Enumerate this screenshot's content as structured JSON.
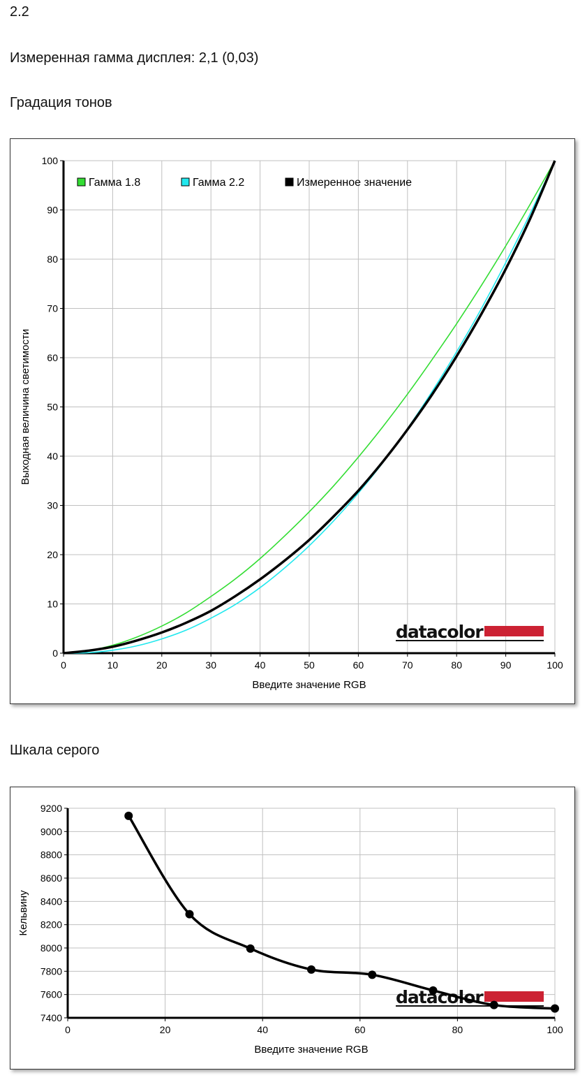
{
  "header": {
    "gamma_value": "2.2",
    "measured_gamma": "Измеренная гамма дисплея: 2,1 (0,03)",
    "tone_title": "Градация тонов",
    "gray_title": "Шкала серого"
  },
  "colors": {
    "gamma18": "#33dd33",
    "gamma22": "#22e8ee",
    "measured": "#000000",
    "grid": "#c0c0c0",
    "brand_bar": "#cc2233"
  },
  "chart_data": [
    {
      "type": "line",
      "title": "",
      "xlabel": "Введите значение RGB",
      "ylabel": "Выходная величина светимости",
      "xlim": [
        0,
        100
      ],
      "ylim": [
        0,
        100
      ],
      "x_ticks": [
        "0",
        "10",
        "20",
        "30",
        "40",
        "50",
        "60",
        "70",
        "80",
        "90",
        "100"
      ],
      "y_ticks": [
        "0",
        "10",
        "20",
        "30",
        "40",
        "50",
        "60",
        "70",
        "80",
        "90",
        "100"
      ],
      "grid": true,
      "legend_position": "top-left",
      "logo": "datacolor",
      "series": [
        {
          "name": "Гамма 1.8",
          "color": "#33dd33",
          "x": [
            0,
            5,
            10,
            15,
            20,
            25,
            30,
            35,
            40,
            45,
            50,
            55,
            60,
            65,
            70,
            75,
            80,
            85,
            90,
            95,
            100
          ],
          "y": [
            0,
            0.5,
            1.6,
            3.3,
            5.5,
            8.2,
            11.5,
            15.1,
            19.2,
            23.8,
            28.7,
            34.0,
            39.8,
            46.0,
            52.6,
            59.6,
            66.9,
            74.6,
            82.7,
            91.2,
            100
          ]
        },
        {
          "name": "Гамма 2.2",
          "color": "#22e8ee",
          "x": [
            0,
            5,
            10,
            15,
            20,
            25,
            30,
            35,
            40,
            45,
            50,
            55,
            60,
            65,
            70,
            75,
            80,
            85,
            90,
            95,
            100
          ],
          "y": [
            0,
            0.1,
            0.6,
            1.5,
            2.9,
            4.7,
            7.1,
            9.9,
            13.3,
            17.3,
            21.8,
            26.9,
            32.5,
            38.7,
            45.6,
            53.1,
            61.2,
            69.9,
            79.3,
            89.3,
            100
          ]
        },
        {
          "name": "Измеренное значение",
          "color": "#000000",
          "x": [
            0,
            5,
            10,
            15,
            20,
            25,
            30,
            35,
            40,
            45,
            50,
            55,
            60,
            65,
            70,
            75,
            80,
            85,
            90,
            95,
            100
          ],
          "y": [
            0,
            0.5,
            1.3,
            2.6,
            4.2,
            6.2,
            8.6,
            11.6,
            15.0,
            18.8,
            23.0,
            27.8,
            33.0,
            38.9,
            45.4,
            52.5,
            60.3,
            68.8,
            78.0,
            88.3,
            100
          ]
        }
      ]
    },
    {
      "type": "line",
      "title": "",
      "xlabel": "Введите значение RGB",
      "ylabel": "Кельвину",
      "xlim": [
        0,
        100
      ],
      "ylim": [
        7400,
        9200
      ],
      "x_ticks": [
        "0",
        "20",
        "40",
        "60",
        "80",
        "100"
      ],
      "y_ticks": [
        "7400",
        "7600",
        "7800",
        "8000",
        "8200",
        "8400",
        "8600",
        "8800",
        "9000",
        "9200"
      ],
      "grid": true,
      "logo": "datacolor",
      "series": [
        {
          "color": "#000000",
          "x": [
            12.5,
            25,
            37.5,
            50,
            62.5,
            75,
            87.5,
            100
          ],
          "y": [
            9135,
            8290,
            7995,
            7815,
            7770,
            7635,
            7510,
            7480
          ]
        }
      ]
    }
  ]
}
